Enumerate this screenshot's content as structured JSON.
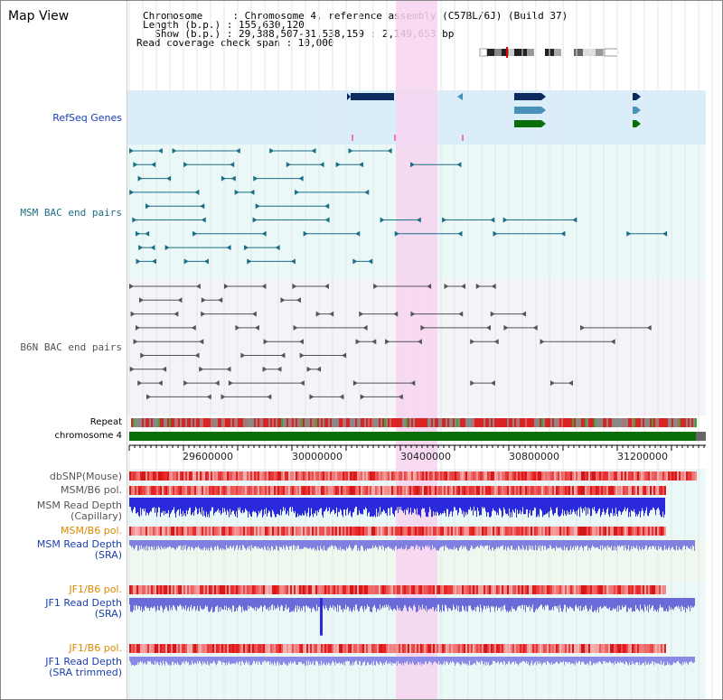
{
  "header": {
    "title": "Map View",
    "lines": [
      "Chromosome     : Chromosome 4, reference assembly (C57BL/6J) (Build 37)",
      "Length (b.p.) : 155,630,120",
      "  Show (b.p.) : 29,388,507-31,538,159 : 2,149,653 bp",
      "Read coverage check span : 10,000"
    ]
  },
  "tracks": {
    "refseq": "RefSeq Genes",
    "msm_bac": "MSM BAC end pairs",
    "b6n_bac": "B6N BAC end pairs",
    "repeat": "Repeat",
    "chromosome": "chromosome 4",
    "dbsnp": "dbSNP(Mouse)",
    "msm_b6_pol_1": "MSM/B6 pol.",
    "msm_read_depth_cap": [
      "MSM Read Depth",
      "(Capillary)"
    ],
    "msm_b6_pol_2": "MSM/B6 pol.",
    "msm_read_depth_sra": [
      "MSM Read Depth",
      "(SRA)"
    ],
    "jf1_b6_pol_1": "JF1/B6 pol.",
    "jf1_read_depth_sra": [
      "JF1 Read Depth",
      "(SRA)"
    ],
    "jf1_b6_pol_2": "JF1/B6 pol.",
    "jf1_read_depth_trim": [
      "JF1 Read Depth",
      "(SRA trimmed)"
    ]
  },
  "axis": {
    "ticks": [
      "29600000",
      "30000000",
      "30400000",
      "30800000",
      "31200000"
    ]
  },
  "colors": {
    "highlight": "#f7d3f0",
    "refseq_bg": "#d9eefa",
    "teal_bg": "#eaf8f8",
    "grey_bg": "#f3f3f8",
    "gene_dark": "#0d2a5e",
    "gene_mid": "#4a90b8",
    "gene_green": "#0a6e0a",
    "msm_line": "#1a6e86",
    "b6n_line": "#555555",
    "depth_blue": "#2a2adc",
    "depth_light": "#8080e0",
    "pol_red": "#e83030"
  }
}
